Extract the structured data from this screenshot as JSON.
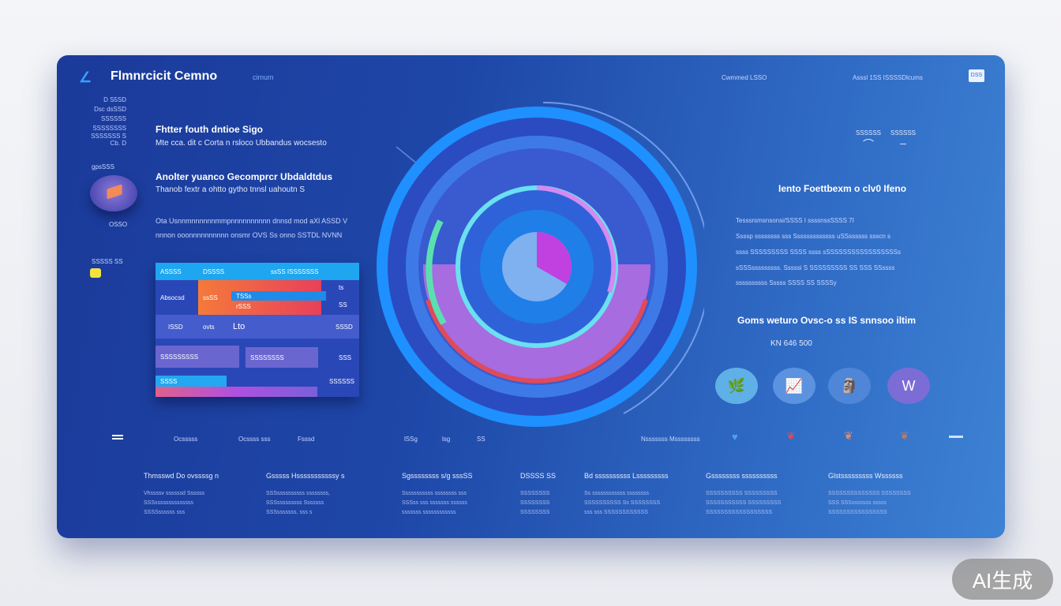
{
  "header": {
    "title": "Flmnrcicit Cemno",
    "subtitle": "cimum",
    "nav_left": "Cwmmed LSSO",
    "nav_right": "Asssl 1SS ISSSSDlcums",
    "button": "DSS"
  },
  "sidebar": {
    "items": [
      "D S5SD",
      "Dsc  dsSSD",
      "SSSSSS",
      "SSSSSSSS",
      "SSSSSSS S",
      "Cb. D"
    ],
    "blob_label": "gpsSSS",
    "blob_caption": "OSSO",
    "tag_label": "SSSSS SS"
  },
  "left": {
    "heading1": "Fhtter fouth  dntioe Sigo",
    "line1": "Mte cca. dit c Corta n rsloco Ubbandus wocsesto",
    "heading2": "Anolter yuanco Gecomprcr Ubdaldtdus",
    "line2": "Thanob  fextr a ohtto gytho tnnsl uahoutn S",
    "line3": "Ota Usnnmnnnnnnmmpnnnnnnnnnn dnnsd mod aXl ASSD V",
    "line4": "nnnon ooonnnnnnnnnn onsmr OVS Ss onno SSTDL NVNN"
  },
  "table": {
    "header": [
      "ASSSS",
      "DSSSS",
      "ssSS ISSSSSSS"
    ],
    "cells": [
      "Absocsd",
      "ssSS",
      "TSSs",
      "rSSS",
      "ts",
      "SS",
      "ISSD",
      "ovts",
      "Lto",
      "SSSD",
      "SSSSSSSSS",
      "SSSSSSSS",
      "SSS",
      "SSSS",
      "SSSSSS"
    ]
  },
  "right": {
    "icon_labels": [
      "SSSSSS",
      "SSSSSS"
    ],
    "heading1": "Iento Foettbexm o clv0 Ifeno",
    "lines": [
      "Tesssrsmsnsonsi/SSSS I ssssnssSSSS 7I",
      "Ssssp ssssssss sss Sssssssssssss uSSssssss ssscn s",
      "ssss SSSSSSSSS SSSS ssss sSSSSSSSSSSSSSSSSSs",
      "sSSSsssssssss. Sssssi S SSSSSSSSS SS SSS SSssss",
      "ssssssssss Sssss SSSS SS SSSSy"
    ],
    "heading2": "Goms weturo Ovsc-o ss IS snnsoo iltim",
    "value": "KN 646 500"
  },
  "bubbles": [
    {
      "icon": "leaf-icon",
      "color": "#5fb0e6"
    },
    {
      "icon": "chart-icon",
      "color": "#5b93e0"
    },
    {
      "icon": "figure-icon",
      "color": "#4f86d8"
    },
    {
      "icon": "w-icon",
      "color": "#7b6cd6"
    }
  ],
  "bottom_bar": {
    "items": [
      "Ocsssss",
      "Ocssss sss",
      "Fsssd",
      "lSSg",
      "lsg",
      "SS"
    ],
    "right_label": "Nsssssss Mssssssss"
  },
  "footer": {
    "columns": [
      {
        "heading": "Thmsswd Do ovssssg n",
        "lines": [
          "Vhssssv ssssssd  Ssssss",
          "SSSssssssssssssss",
          "SSSSssssss sss"
        ]
      },
      {
        "heading": "Gsssss Hsssssssssssy s",
        "lines": [
          "SSSssssssssss  ssssssss,",
          "SSSsssssssss  Sssssss",
          "SSSsssssss, sss s"
        ]
      },
      {
        "heading": "Sgssssssss s/g sssSS",
        "lines": [
          "Sssssssssss ssssssss sss",
          "SSSss sss sssssss ssssss",
          "sssssss ssssssssssss"
        ]
      },
      {
        "heading": "DSSSS SS",
        "lines": [
          "SSSSSSSS",
          "SSSSSSSS",
          "SSSSSSSS"
        ]
      },
      {
        "heading": "Bd ssssssssss Lsssssssss",
        "lines": [
          "Ss ssssssssssss ssssssss",
          "SSSSSSSSSS Ss SSSSSSSS",
          "sss sss  SSSSSSSSSSSS"
        ]
      },
      {
        "heading": "Gssssssss ssssssssss",
        "lines": [
          "SSSSSSSSSS  SSSSSSSSS",
          "SSSSSSSSSSS SSSSSSSSS",
          "SSSSSSSSSSSSSSSSSS"
        ]
      },
      {
        "heading": "Glstsssssssss Wssssss",
        "lines": [
          "SSSSSSSSSSSSSS SSSSSSSS",
          "SSS SSSsssssss sssss",
          "SSSSSSSSSSSSSSSS"
        ]
      }
    ]
  },
  "watermark": "AI生成",
  "colors": {
    "card_start": "#1b3a9a",
    "card_end": "#3d82d4",
    "ring": "#1e90ff",
    "accent_pink": "#c65ae0",
    "accent_red": "#e04a5a"
  }
}
